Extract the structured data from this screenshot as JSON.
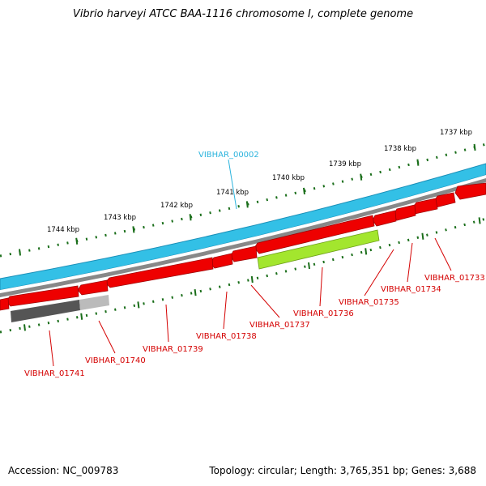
{
  "title": "Vibrio harveyi ATCC BAA-1116 chromosome I, complete genome",
  "footer": {
    "accession": "Accession: NC_009783",
    "summary": "Topology: circular; Length: 3,765,351 bp; Genes: 3,688"
  },
  "colors": {
    "ruler": "#1a6e1a",
    "fwd_gene": "#33c0e6",
    "fwd_gene_edge": "#1a8fb8",
    "rev_gene": "#ee0000",
    "rev_gene_edge": "#a00000",
    "highlight_gene": "#a3e62e",
    "pseudo_dark": "#555555",
    "pseudo_light": "#bbbbbb",
    "backbone": "#888888",
    "rev_label": "#d40000",
    "fwd_label": "#2ab3dd"
  },
  "ruler_ticks": [
    "1737 kbp",
    "1738 kbp",
    "1739 kbp",
    "1740 kbp",
    "1741 kbp",
    "1742 kbp",
    "1743 kbp",
    "1744 kbp"
  ],
  "genes": [
    {
      "label": "VIBHAR_00002",
      "strand": "forward"
    },
    {
      "label": "VIBHAR_01733",
      "strand": "reverse"
    },
    {
      "label": "VIBHAR_01734",
      "strand": "reverse"
    },
    {
      "label": "VIBHAR_01735",
      "strand": "reverse"
    },
    {
      "label": "VIBHAR_01736",
      "strand": "reverse"
    },
    {
      "label": "VIBHAR_01737",
      "strand": "reverse"
    },
    {
      "label": "VIBHAR_01738",
      "strand": "reverse"
    },
    {
      "label": "VIBHAR_01739",
      "strand": "reverse"
    },
    {
      "label": "VIBHAR_01740",
      "strand": "reverse"
    },
    {
      "label": "VIBHAR_01741",
      "strand": "reverse"
    }
  ]
}
